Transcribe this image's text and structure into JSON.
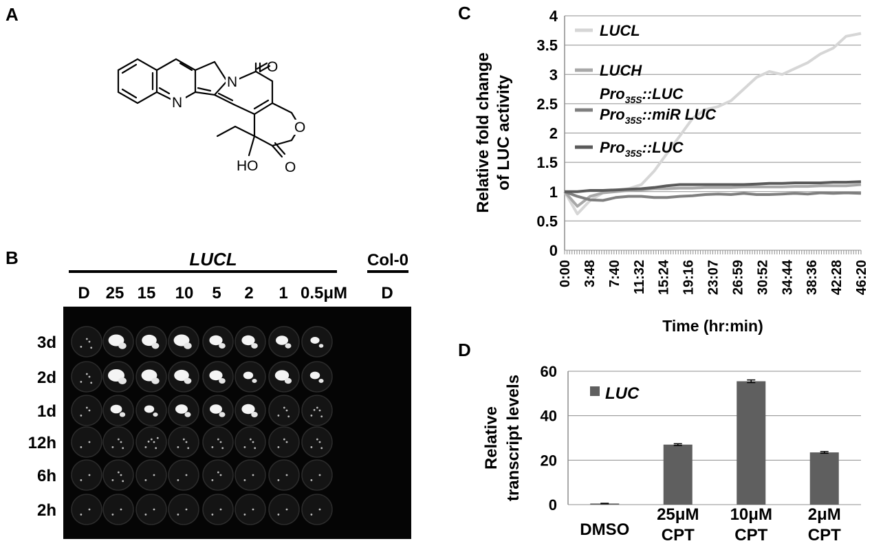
{
  "panels": {
    "a": {
      "letter": "A",
      "atoms": {
        "n_ring": "N",
        "n_lactam": "N",
        "o_ketone": "O",
        "o_ring": "O",
        "o_lactone": "O",
        "hydroxyl": "HO"
      }
    },
    "b": {
      "letter": "B",
      "group_label": "LUCL",
      "control_label": "Col-0",
      "column_labels": [
        "D",
        "25",
        "15",
        "10",
        "5",
        "2",
        "1",
        "0.5μM"
      ],
      "control_column_label": "D",
      "row_labels": [
        "3d",
        "2d",
        "1d",
        "12h",
        "6h",
        "2h"
      ]
    },
    "c": {
      "letter": "C"
    },
    "d": {
      "letter": "D"
    }
  },
  "colors": {
    "LUCL": "#d6d6d6",
    "LUCH": "#a8a8a8",
    "miR": "#7f7f7f",
    "LUC35S": "#5a5a5a",
    "bar": "#5f5f5f",
    "grid": "#8c8c8c"
  },
  "chart_data": [
    {
      "type": "line",
      "panel": "C",
      "ylabel_lines": [
        "Relative fold change",
        "of LUC activity"
      ],
      "xlabel": "Time (hr:min)",
      "ylim": [
        0,
        4
      ],
      "yticks": [
        "0",
        "0.5",
        "1",
        "1.5",
        "2",
        "2.5",
        "3",
        "3.5",
        "4"
      ],
      "xticks": [
        "0:00",
        "3:48",
        "7:40",
        "11:32",
        "15:24",
        "19:16",
        "23:07",
        "26:59",
        "30:52",
        "34:44",
        "38:36",
        "42:28",
        "46:20"
      ],
      "x_hours": [
        0,
        2,
        4,
        6,
        8,
        10,
        12,
        14,
        16,
        18,
        20,
        22,
        24,
        26,
        28,
        30,
        32,
        34,
        36,
        38,
        40,
        42,
        44,
        46.33
      ],
      "grid": true,
      "legend_position": "top-left",
      "series": [
        {
          "name": "LUCL",
          "legend_parts": [
            {
              "t": "LUCL",
              "sub": false
            }
          ],
          "values": [
            1.0,
            0.62,
            0.85,
            0.98,
            1.02,
            1.05,
            1.12,
            1.35,
            1.65,
            1.95,
            2.25,
            2.4,
            2.45,
            2.55,
            2.75,
            2.95,
            3.05,
            3.0,
            3.1,
            3.2,
            3.35,
            3.45,
            3.65,
            3.7
          ]
        },
        {
          "name": "LUCH",
          "legend_parts": [
            {
              "t": "LUCH",
              "sub": false
            }
          ],
          "values": [
            1.0,
            0.75,
            0.92,
            0.98,
            1.0,
            1.02,
            1.03,
            1.05,
            1.05,
            1.06,
            1.06,
            1.07,
            1.07,
            1.07,
            1.08,
            1.08,
            1.08,
            1.08,
            1.09,
            1.09,
            1.1,
            1.1,
            1.1,
            1.12
          ]
        },
        {
          "name": "Pro35S::LUC Pro35S::miR LUC",
          "legend_parts": [
            {
              "t": "Pro",
              "sub": false
            },
            {
              "t": "35S",
              "sub": true
            },
            {
              "t": "::LUC",
              "sub": false
            },
            {
              "t": "\n",
              "sub": false
            },
            {
              "t": "Pro",
              "sub": false
            },
            {
              "t": "35S",
              "sub": true
            },
            {
              "t": "::miR LUC",
              "sub": false
            }
          ],
          "values": [
            1.0,
            0.92,
            0.86,
            0.85,
            0.9,
            0.92,
            0.92,
            0.9,
            0.9,
            0.92,
            0.93,
            0.95,
            0.96,
            0.95,
            0.97,
            0.95,
            0.95,
            0.96,
            0.97,
            0.96,
            0.98,
            0.97,
            0.98,
            0.97
          ]
        },
        {
          "name": "Pro35S::LUC",
          "legend_parts": [
            {
              "t": "Pro",
              "sub": false
            },
            {
              "t": "35S",
              "sub": true
            },
            {
              "t": "::LUC",
              "sub": false
            }
          ],
          "values": [
            1.0,
            1.0,
            1.02,
            1.02,
            1.03,
            1.04,
            1.05,
            1.07,
            1.1,
            1.12,
            1.12,
            1.12,
            1.12,
            1.12,
            1.12,
            1.13,
            1.14,
            1.14,
            1.15,
            1.15,
            1.15,
            1.16,
            1.16,
            1.17
          ]
        }
      ]
    },
    {
      "type": "bar",
      "panel": "D",
      "ylabel_lines": [
        "Relative",
        "transcript levels"
      ],
      "ylim": [
        0,
        60
      ],
      "yticks": [
        "0",
        "20",
        "40",
        "60"
      ],
      "categories": [
        [
          "DMSO"
        ],
        [
          "25μM",
          "CPT"
        ],
        [
          "10μM",
          "CPT"
        ],
        [
          "2μM",
          "CPT"
        ]
      ],
      "grid": true,
      "legend_position": "top-left",
      "series": [
        {
          "name": "LUC",
          "values": [
            0.5,
            27,
            55.5,
            23.5
          ],
          "errors": [
            0.1,
            0.4,
            0.6,
            0.4
          ]
        }
      ]
    }
  ]
}
